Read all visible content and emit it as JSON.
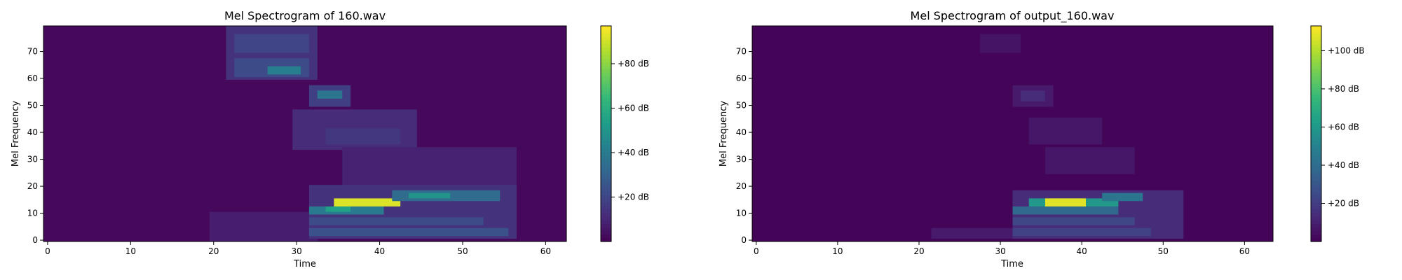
{
  "chart_data": [
    {
      "type": "heatmap",
      "title": "Mel Spectrogram of 160.wav",
      "xlabel": "Time",
      "ylabel": "Mel Frequency",
      "xlim": [
        -0.5,
        62.5
      ],
      "ylim": [
        -0.5,
        79.5
      ],
      "xticks": [
        0,
        10,
        20,
        30,
        40,
        50,
        60
      ],
      "yticks": [
        0,
        10,
        20,
        30,
        40,
        50,
        60,
        70
      ],
      "colormap": "viridis",
      "colorbar": {
        "range": [
          0,
          97
        ],
        "ticks": [
          20,
          40,
          60,
          80
        ],
        "tick_labels": [
          "+20 dB",
          "+40 dB",
          "+60 dB",
          "+80 dB"
        ]
      },
      "background_db": 2,
      "regions": [
        {
          "t": [
            22,
            32
          ],
          "f": [
            60,
            79
          ],
          "db": 14
        },
        {
          "t": [
            23,
            31
          ],
          "f": [
            70,
            76
          ],
          "db": 20
        },
        {
          "t": [
            23,
            31
          ],
          "f": [
            61,
            67
          ],
          "db": 22
        },
        {
          "t": [
            27,
            30
          ],
          "f": [
            62,
            64
          ],
          "db": 42
        },
        {
          "t": [
            32,
            36
          ],
          "f": [
            50,
            57
          ],
          "db": 18
        },
        {
          "t": [
            33,
            35
          ],
          "f": [
            53,
            55
          ],
          "db": 38
        },
        {
          "t": [
            30,
            44
          ],
          "f": [
            34,
            48
          ],
          "db": 12
        },
        {
          "t": [
            34,
            42
          ],
          "f": [
            36,
            41
          ],
          "db": 16
        },
        {
          "t": [
            36,
            56
          ],
          "f": [
            20,
            34
          ],
          "db": 9
        },
        {
          "t": [
            20,
            32
          ],
          "f": [
            0,
            10
          ],
          "db": 8
        },
        {
          "t": [
            32,
            56
          ],
          "f": [
            1,
            20
          ],
          "db": 14
        },
        {
          "t": [
            32,
            55
          ],
          "f": [
            2,
            4
          ],
          "db": 24
        },
        {
          "t": [
            32,
            52
          ],
          "f": [
            6,
            8
          ],
          "db": 22
        },
        {
          "t": [
            32,
            40
          ],
          "f": [
            10,
            12
          ],
          "db": 40
        },
        {
          "t": [
            34,
            36
          ],
          "f": [
            11,
            12
          ],
          "db": 55
        },
        {
          "t": [
            35,
            42
          ],
          "f": [
            13,
            15
          ],
          "db": 92
        },
        {
          "t": [
            42,
            54
          ],
          "f": [
            15,
            18
          ],
          "db": 34
        },
        {
          "t": [
            44,
            48
          ],
          "f": [
            16,
            17
          ],
          "db": 50
        }
      ]
    },
    {
      "type": "heatmap",
      "title": "Mel Spectrogram of output_160.wav",
      "xlabel": "Time",
      "ylabel": "Mel Frequency",
      "xlim": [
        -0.5,
        63.5
      ],
      "ylim": [
        -0.5,
        79.5
      ],
      "xticks": [
        0,
        10,
        20,
        30,
        40,
        50,
        60
      ],
      "yticks": [
        0,
        10,
        20,
        30,
        40,
        50,
        60,
        70
      ],
      "colormap": "viridis",
      "colorbar": {
        "range": [
          0,
          113
        ],
        "ticks": [
          20,
          40,
          60,
          80,
          100
        ],
        "tick_labels": [
          "+20 dB",
          "+40 dB",
          "+60 dB",
          "+80 dB",
          "+100 dB"
        ]
      },
      "background_db": 1,
      "regions": [
        {
          "t": [
            28,
            32
          ],
          "f": [
            70,
            76
          ],
          "db": 6
        },
        {
          "t": [
            32,
            36
          ],
          "f": [
            50,
            57
          ],
          "db": 8
        },
        {
          "t": [
            33,
            35
          ],
          "f": [
            52,
            55
          ],
          "db": 14
        },
        {
          "t": [
            34,
            42
          ],
          "f": [
            36,
            45
          ],
          "db": 7
        },
        {
          "t": [
            36,
            46
          ],
          "f": [
            25,
            34
          ],
          "db": 7
        },
        {
          "t": [
            22,
            32
          ],
          "f": [
            1,
            4
          ],
          "db": 8
        },
        {
          "t": [
            32,
            52
          ],
          "f": [
            1,
            18
          ],
          "db": 14
        },
        {
          "t": [
            32,
            48
          ],
          "f": [
            2,
            4
          ],
          "db": 22
        },
        {
          "t": [
            32,
            46
          ],
          "f": [
            6,
            8
          ],
          "db": 24
        },
        {
          "t": [
            32,
            44
          ],
          "f": [
            10,
            12
          ],
          "db": 38
        },
        {
          "t": [
            34,
            44
          ],
          "f": [
            13,
            15
          ],
          "db": 60
        },
        {
          "t": [
            36,
            40
          ],
          "f": [
            13,
            15
          ],
          "db": 108
        },
        {
          "t": [
            43,
            47
          ],
          "f": [
            15,
            17
          ],
          "db": 44
        }
      ]
    }
  ]
}
